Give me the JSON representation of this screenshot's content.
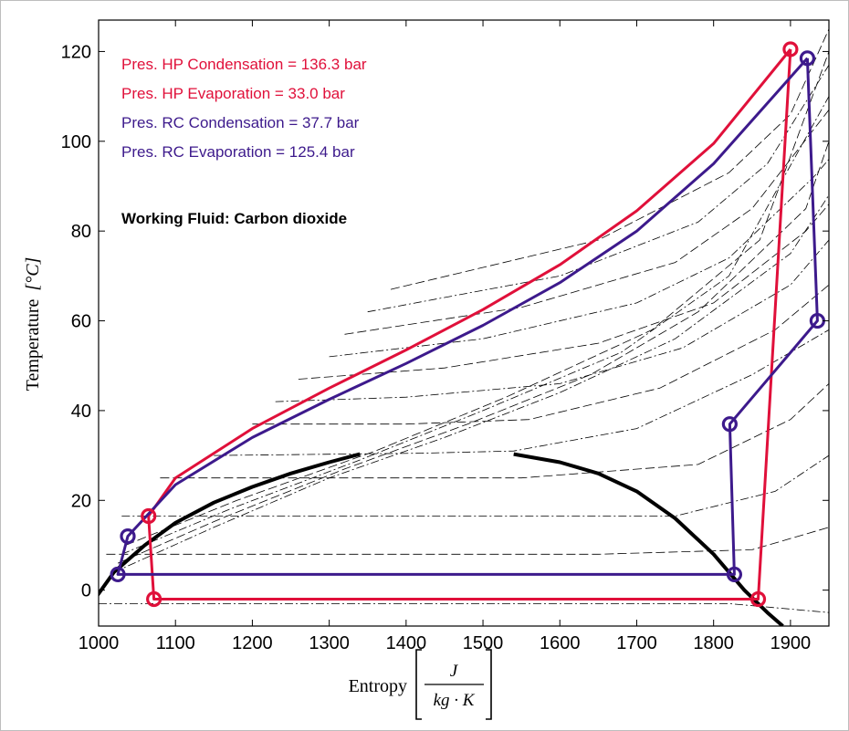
{
  "chart_data": {
    "type": "line",
    "xlabel": "Entropy",
    "xlabel_unit": {
      "numerator": "J",
      "denominator": "kg · K"
    },
    "ylabel": "Temperature",
    "ylabel_unit": "[°C]",
    "xlim": [
      1000,
      1950
    ],
    "ylim": [
      -8,
      127
    ],
    "xticks": [
      1000,
      1100,
      1200,
      1300,
      1400,
      1500,
      1600,
      1700,
      1800,
      1900
    ],
    "yticks": [
      0,
      20,
      40,
      60,
      80,
      100,
      120
    ],
    "grid": false,
    "legend_placement": "top-left",
    "annotations": [
      {
        "text": "Pres. HP Condensation = 136.3 bar",
        "color": "#e0103a"
      },
      {
        "text": "Pres. HP Evaporation = 33.0 bar",
        "color": "#e0103a"
      },
      {
        "text": "Pres. RC Condensation = 37.7 bar",
        "color": "#3d1a8c"
      },
      {
        "text": "Pres. RC Evaporation = 125.4 bar",
        "color": "#3d1a8c"
      },
      {
        "text": "Working Fluid: Carbon dioxide",
        "color": "#000000",
        "bold": true
      }
    ],
    "series": [
      {
        "role": "saturation-dome-liquid",
        "color": "#000000",
        "style": "solid-thick",
        "x": [
          995,
          1020,
          1060,
          1100,
          1150,
          1200,
          1250,
          1300,
          1340
        ],
        "y": [
          -2,
          4,
          10,
          15,
          19.5,
          23,
          26,
          28.5,
          30.3
        ]
      },
      {
        "role": "saturation-dome-vapor",
        "color": "#000000",
        "style": "solid-thick",
        "x": [
          1540,
          1600,
          1650,
          1700,
          1750,
          1800,
          1840,
          1870,
          1890
        ],
        "y": [
          30.3,
          28.5,
          26,
          22,
          16,
          8,
          0,
          -5,
          -8
        ]
      },
      {
        "role": "HP cycle",
        "color": "#e0103a",
        "style": "solid",
        "x": [
          1900,
          1800,
          1700,
          1600,
          1500,
          1400,
          1300,
          1200,
          1100,
          1065,
          1072,
          1200,
          1400,
          1600,
          1858,
          1900
        ],
        "y": [
          120.5,
          99.5,
          84.5,
          72.5,
          62.5,
          53.5,
          45,
          36,
          25,
          16.5,
          -2,
          -2,
          -2,
          -2,
          -2,
          120.5
        ],
        "markers": [
          {
            "x": 1900,
            "y": 120.5
          },
          {
            "x": 1065,
            "y": 16.5
          },
          {
            "x": 1072,
            "y": -2
          },
          {
            "x": 1858,
            "y": -2
          }
        ]
      },
      {
        "role": "RC cycle",
        "color": "#3d1a8c",
        "style": "solid",
        "x": [
          1922,
          1800,
          1700,
          1600,
          1500,
          1400,
          1300,
          1200,
          1100,
          1038,
          1025,
          1200,
          1400,
          1600,
          1827,
          1821,
          1935,
          1922
        ],
        "y": [
          118.5,
          95,
          80,
          68.5,
          59,
          50.5,
          42.5,
          34,
          23.5,
          12,
          3.5,
          3.5,
          3.5,
          3.5,
          3.5,
          37,
          60,
          118.5
        ],
        "markers": [
          {
            "x": 1922,
            "y": 118.5
          },
          {
            "x": 1935,
            "y": 60
          },
          {
            "x": 1821,
            "y": 37
          },
          {
            "x": 1827,
            "y": 3.5
          },
          {
            "x": 1038,
            "y": 12
          },
          {
            "x": 1025,
            "y": 3.5
          }
        ]
      }
    ],
    "isobars": [
      {
        "x": [
          1000,
          1150,
          1400,
          1650,
          1820,
          1950
        ],
        "y": [
          -3,
          -3,
          -3,
          -3,
          -3,
          -5
        ]
      },
      {
        "x": [
          1010,
          1150,
          1400,
          1650,
          1850,
          1950
        ],
        "y": [
          8,
          8,
          8,
          8,
          9,
          14
        ]
      },
      {
        "x": [
          1030,
          1200,
          1450,
          1750,
          1880,
          1950
        ],
        "y": [
          16.5,
          16.5,
          16.5,
          16.5,
          22,
          30
        ]
      },
      {
        "x": [
          1080,
          1300,
          1550,
          1780,
          1900,
          1950
        ],
        "y": [
          25,
          25,
          25,
          28,
          38,
          46
        ]
      },
      {
        "x": [
          1150,
          1420,
          1540,
          1700,
          1850,
          1950
        ],
        "y": [
          30,
          30.5,
          31,
          36,
          48,
          58
        ]
      },
      {
        "x": [
          1200,
          1400,
          1560,
          1730,
          1880,
          1950
        ],
        "y": [
          37,
          37,
          38,
          45,
          58,
          68
        ]
      },
      {
        "x": [
          1230,
          1400,
          1600,
          1760,
          1900,
          1950
        ],
        "y": [
          42,
          43,
          46,
          54,
          68,
          78
        ]
      },
      {
        "x": [
          1260,
          1450,
          1650,
          1800,
          1920,
          1950
        ],
        "y": [
          47,
          49.5,
          55,
          64,
          80,
          86
        ]
      },
      {
        "x": [
          1300,
          1500,
          1700,
          1820,
          1930,
          1950
        ],
        "y": [
          52,
          56,
          64,
          74,
          92,
          96
        ]
      },
      {
        "x": [
          1320,
          1550,
          1750,
          1850,
          1950
        ],
        "y": [
          57,
          63,
          73,
          85,
          107
        ]
      },
      {
        "x": [
          1350,
          1600,
          1780,
          1870,
          1950
        ],
        "y": [
          62,
          70,
          82,
          95,
          117
        ]
      },
      {
        "x": [
          1380,
          1650,
          1820,
          1900,
          1950
        ],
        "y": [
          67,
          78,
          93,
          106,
          125
        ]
      },
      {
        "x": [
          1020,
          1150,
          1300,
          1450,
          1600,
          1750,
          1900,
          1950
        ],
        "y": [
          4,
          14,
          25,
          34,
          44,
          56,
          75,
          88
        ]
      },
      {
        "x": [
          1025,
          1160,
          1320,
          1480,
          1640,
          1780,
          1920,
          1950
        ],
        "y": [
          6,
          16,
          27,
          37,
          48,
          62,
          85,
          100
        ]
      },
      {
        "x": [
          1030,
          1170,
          1340,
          1500,
          1680,
          1820,
          1950
        ],
        "y": [
          8,
          18,
          29,
          40,
          53,
          70,
          110
        ]
      },
      {
        "x": [
          1035,
          1180,
          1360,
          1530,
          1720,
          1860,
          1950
        ],
        "y": [
          10,
          20,
          31,
          43,
          58,
          78,
          120
        ]
      }
    ]
  }
}
